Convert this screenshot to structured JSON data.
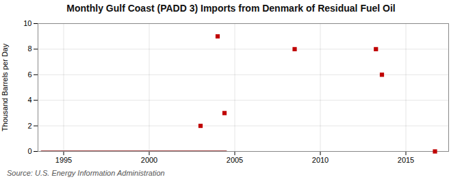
{
  "chart_data": {
    "type": "scatter",
    "title": "Monthly Gulf Coast (PADD 3) Imports from Denmark of Residual Fuel Oil",
    "ylabel": "Thousand Barrels per Day",
    "source": "Source: U.S. Energy Information Administration",
    "x": [
      2003.0,
      2004.0,
      2004.4,
      2008.5,
      2013.25,
      2013.6,
      2016.7
    ],
    "values": [
      2.0,
      9.0,
      3.0,
      8.0,
      8.0,
      6.0,
      0.0
    ],
    "color": "#c00000",
    "marker": "square",
    "zero_line": {
      "x": [
        1993.7,
        2004.5
      ],
      "values": [
        0,
        0
      ],
      "color": "#8b1a1a"
    },
    "xlim": [
      1993.5,
      2017.5
    ],
    "ylim": [
      0,
      10
    ],
    "xticks": [
      1995,
      2000,
      2005,
      2010,
      2015
    ],
    "yticks": [
      0,
      2,
      4,
      6,
      8,
      10
    ],
    "grid": true
  }
}
